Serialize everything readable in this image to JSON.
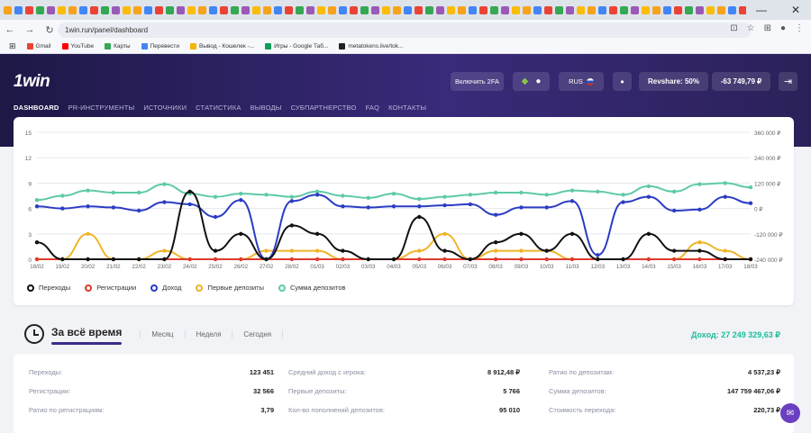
{
  "browser": {
    "url": "1win.run/panel/dashboard",
    "bookmarks": [
      {
        "label": "Gmail",
        "color": "#ea4335"
      },
      {
        "label": "YouTube",
        "color": "#ff0000"
      },
      {
        "label": "Карты",
        "color": "#34a853"
      },
      {
        "label": "Перевести",
        "color": "#4285f4"
      },
      {
        "label": "Вывод - Кошелек -...",
        "color": "#f4b400"
      },
      {
        "label": "Игры - Google Таб...",
        "color": "#0f9d58"
      },
      {
        "label": "metatokens.live/tok...",
        "color": "#222222"
      }
    ],
    "minimize_icon": "—",
    "close_icon": "✕"
  },
  "header": {
    "logo": "1win",
    "twofa_label": "Включить 2FA",
    "lang_label": "RUS",
    "revshare_label": "Revshare: 50%",
    "balance_label": "-63 749,79 ₽",
    "nav": [
      "DASHBOARD",
      "PR-ИНСТРУМЕНТЫ",
      "ИСТОЧНИКИ",
      "СТАТИСТИКА",
      "ВЫВОДЫ",
      "СУБПАРТНЕРСТВО",
      "FAQ",
      "КОНТАКТЫ"
    ]
  },
  "chart_data": {
    "type": "line",
    "categories": [
      "18/02",
      "19/02",
      "20/02",
      "21/02",
      "22/02",
      "23/02",
      "24/02",
      "25/02",
      "26/02",
      "27/02",
      "28/02",
      "01/03",
      "02/03",
      "03/03",
      "04/03",
      "05/03",
      "06/03",
      "07/03",
      "08/03",
      "09/03",
      "10/03",
      "11/03",
      "12/03",
      "13/03",
      "14/03",
      "15/03",
      "16/03",
      "17/03",
      "18/03"
    ],
    "y_left_ticks": [
      "0",
      "3",
      "6",
      "9",
      "12",
      "15"
    ],
    "y_left_range": [
      0,
      15
    ],
    "y_right_ticks": [
      "-240 000 ₽",
      "-120 000 ₽",
      "0 ₽",
      "120 000 ₽",
      "240 000 ₽",
      "360 000 ₽"
    ],
    "y_right_range": [
      -240000,
      360000
    ],
    "grid": true,
    "series": [
      {
        "name": "Переходы",
        "color": "#111111",
        "axis": "left",
        "values": [
          2,
          0,
          0,
          0,
          0,
          0,
          8,
          1,
          3,
          0,
          4,
          3,
          1,
          0,
          0,
          5,
          1,
          0,
          2,
          3,
          1,
          3,
          0,
          0,
          3,
          1,
          1,
          0,
          0
        ]
      },
      {
        "name": "Регистрации",
        "color": "#e03a2f",
        "axis": "left",
        "values": [
          0,
          0,
          0,
          0,
          0,
          0,
          0,
          0,
          0,
          0,
          0,
          0,
          0,
          0,
          0,
          0,
          0,
          0,
          0,
          0,
          0,
          0,
          0,
          0,
          0,
          0,
          0,
          0,
          0
        ]
      },
      {
        "name": "Доход",
        "color": "#2b3cc4",
        "axis": "right",
        "values": [
          10000,
          0,
          10000,
          5000,
          -10000,
          30000,
          20000,
          -40000,
          40000,
          -240000,
          35000,
          65000,
          10000,
          5000,
          10000,
          10000,
          15000,
          20000,
          -30000,
          5000,
          5000,
          35000,
          -220000,
          30000,
          55000,
          -10000,
          -5000,
          55000,
          25000
        ]
      },
      {
        "name": "Первые депозиты",
        "color": "#f0b429",
        "axis": "left",
        "values": [
          0,
          0,
          3,
          0,
          0,
          1,
          0,
          0,
          0,
          1,
          1,
          1,
          0,
          0,
          0,
          1,
          3,
          0,
          1,
          1,
          1,
          0,
          0,
          0,
          0,
          0,
          2,
          1,
          0
        ]
      },
      {
        "name": "Сумма депозитов",
        "color": "#5ec9a8",
        "axis": "right",
        "values": [
          40000,
          60000,
          85000,
          75000,
          75000,
          115000,
          70000,
          55000,
          70000,
          65000,
          55000,
          80000,
          60000,
          50000,
          70000,
          45000,
          55000,
          65000,
          75000,
          75000,
          65000,
          85000,
          80000,
          65000,
          105000,
          80000,
          115000,
          120000,
          100000
        ]
      }
    ]
  },
  "period": {
    "all_time": "За всё время",
    "month": "Месяц",
    "week": "Неделя",
    "today": "Сегодня",
    "income_label": "Доход:",
    "income_value": "27 249 329,63 ₽"
  },
  "stats": {
    "col1": [
      {
        "k": "Переходы:",
        "v": "123 451"
      },
      {
        "k": "Регистрации:",
        "v": "32 566"
      },
      {
        "k": "Ратио по регистрациям:",
        "v": "3,79"
      }
    ],
    "col2": [
      {
        "k": "Средний доход с игрока:",
        "v": "8 912,48 ₽"
      },
      {
        "k": "Первые депозиты:",
        "v": "5 766"
      },
      {
        "k": "Кол-во пополнений депозитов:",
        "v": "95 010"
      }
    ],
    "col3": [
      {
        "k": "Ратио по депозитам:",
        "v": "4 537,23 ₽"
      },
      {
        "k": "Сумма депозитов:",
        "v": "147 759 467,06 ₽"
      },
      {
        "k": "Стоимость перехода:",
        "v": "220,73 ₽"
      }
    ]
  }
}
